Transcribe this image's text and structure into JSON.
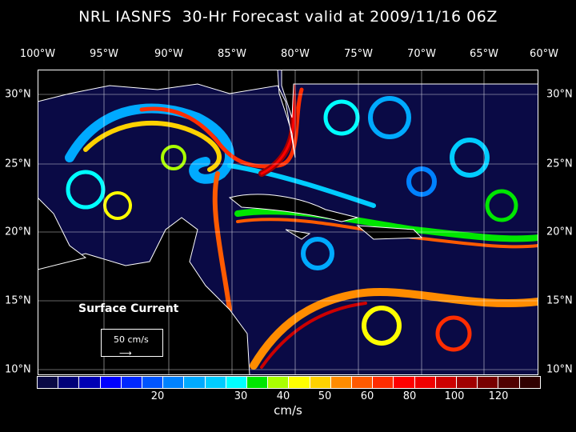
{
  "title": "NRL IASNFS  30-Hr Forecast valid at 2009/11/16 06Z",
  "lon_labels": [
    "100°W",
    "95°W",
    "90°W",
    "85°W",
    "80°W",
    "75°W",
    "70°W",
    "65°W",
    "60°W"
  ],
  "lat_labels": [
    "30°N",
    "25°N",
    "20°N",
    "15°N",
    "10°N"
  ],
  "field_label": "Surface Current",
  "reference_vector": {
    "label": "50 cm/s",
    "icon": "arrow-right-icon"
  },
  "colorbar": {
    "unit": "cm/s",
    "ticks": [
      "20",
      "30",
      "40",
      "50",
      "60",
      "80",
      "100",
      "120"
    ],
    "colors": [
      "#0a0a45",
      "#000078",
      "#0000b4",
      "#0000ff",
      "#0028ff",
      "#0055ff",
      "#0082ff",
      "#00aaff",
      "#00ccff",
      "#00ffff",
      "#00e600",
      "#aaff00",
      "#ffff00",
      "#ffd200",
      "#ff8c00",
      "#ff5a00",
      "#ff2d00",
      "#ff0000",
      "#f00000",
      "#cc0000",
      "#a00000",
      "#780000",
      "#500000",
      "#300000"
    ]
  },
  "colors": {
    "ocean": "#0a0a45",
    "land": "#000000",
    "grid": "#ffffff"
  }
}
